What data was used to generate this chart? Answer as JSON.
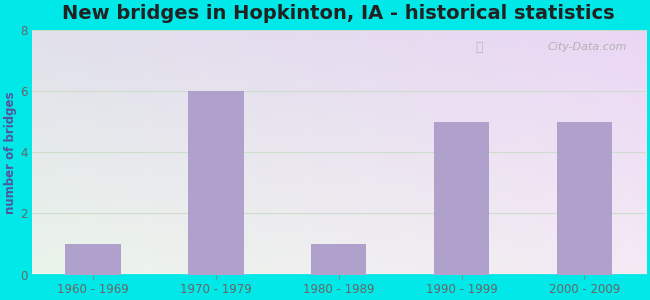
{
  "title": "New bridges in Hopkinton, IA - historical statistics",
  "categories": [
    "1960 - 1969",
    "1970 - 1979",
    "1980 - 1989",
    "1990 - 1999",
    "2000 - 2009"
  ],
  "values": [
    1,
    6,
    1,
    5,
    5
  ],
  "bar_color": "#b0a0cc",
  "ylabel": "number of bridges",
  "ylim": [
    0,
    8
  ],
  "yticks": [
    0,
    2,
    4,
    6,
    8
  ],
  "title_fontsize": 14,
  "title_color": "#222222",
  "tick_label_color": "#666666",
  "ylabel_color": "#555599",
  "background_outer": "#00e8e8",
  "watermark": "City-Data.com",
  "bar_width": 0.45,
  "gradient_colors": [
    "#d8eedc",
    "#eaf4f8"
  ],
  "grid_color": "#ccddcc",
  "spine_bottom_color": "#00e8e8"
}
